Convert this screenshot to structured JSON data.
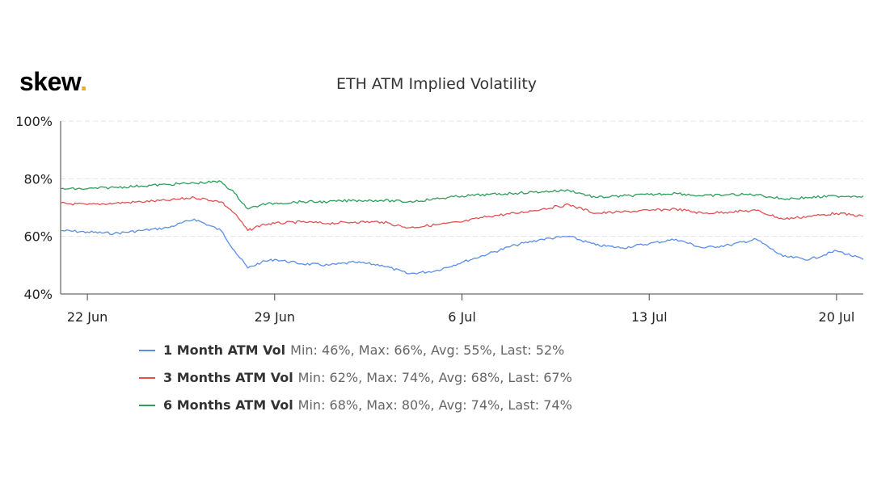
{
  "logo": {
    "text": "skew",
    "dot": "."
  },
  "chart_data": {
    "type": "line",
    "title": "ETH ATM Implied Volatility",
    "ylim": [
      40,
      100
    ],
    "yticks": [
      "40%",
      "60%",
      "80%",
      "100%"
    ],
    "ytick_values": [
      40,
      60,
      80,
      100
    ],
    "xticks": [
      "22 Jun",
      "29 Jun",
      "6 Jul",
      "13 Jul",
      "20 Jul"
    ],
    "xtick_values": [
      "2020-06-22",
      "2020-06-29",
      "2020-07-06",
      "2020-07-13",
      "2020-07-20"
    ],
    "xlim": [
      "2020-06-21",
      "2020-07-21"
    ],
    "grid": true,
    "legend_position": "bottom",
    "series": [
      {
        "name": "1 Month ATM Vol",
        "stats": "Min: 46%, Max: 66%, Avg: 55%, Last: 52%",
        "color": "#5b8ee6",
        "x": [
          "2020-06-21",
          "2020-06-22",
          "2020-06-23",
          "2020-06-24",
          "2020-06-25",
          "2020-06-26",
          "2020-06-27",
          "2020-06-27T12:00",
          "2020-06-28",
          "2020-06-28T12:00",
          "2020-06-29",
          "2020-06-30",
          "2020-07-01",
          "2020-07-02",
          "2020-07-03",
          "2020-07-04",
          "2020-07-05",
          "2020-07-06",
          "2020-07-07",
          "2020-07-08",
          "2020-07-09",
          "2020-07-10",
          "2020-07-11",
          "2020-07-12",
          "2020-07-13",
          "2020-07-14",
          "2020-07-15",
          "2020-07-16",
          "2020-07-17",
          "2020-07-18",
          "2020-07-19",
          "2020-07-20",
          "2020-07-21"
        ],
        "values": [
          62,
          61.5,
          61,
          62,
          63,
          66,
          62,
          55,
          49,
          51,
          52,
          50.5,
          50,
          51,
          50,
          47,
          48,
          51,
          54,
          57,
          59,
          60,
          57,
          56,
          57.5,
          59,
          56,
          57,
          59,
          53,
          52,
          55,
          52
        ]
      },
      {
        "name": "3 Months ATM Vol",
        "stats": "Min: 62%, Max: 74%, Avg: 68%, Last: 67%",
        "color": "#e05252",
        "x": [
          "2020-06-21",
          "2020-06-22",
          "2020-06-23",
          "2020-06-24",
          "2020-06-25",
          "2020-06-26",
          "2020-06-27",
          "2020-06-27T12:00",
          "2020-06-28",
          "2020-06-28T12:00",
          "2020-06-29",
          "2020-06-30",
          "2020-07-01",
          "2020-07-02",
          "2020-07-03",
          "2020-07-04",
          "2020-07-05",
          "2020-07-06",
          "2020-07-07",
          "2020-07-08",
          "2020-07-09",
          "2020-07-10",
          "2020-07-11",
          "2020-07-12",
          "2020-07-13",
          "2020-07-14",
          "2020-07-15",
          "2020-07-16",
          "2020-07-17",
          "2020-07-18",
          "2020-07-19",
          "2020-07-20",
          "2020-07-21"
        ],
        "values": [
          71.5,
          71,
          71.5,
          72,
          72.5,
          73.5,
          72,
          68,
          62,
          64,
          64.5,
          65,
          64.5,
          65,
          65,
          63,
          64,
          65,
          67,
          68,
          69.5,
          71,
          68,
          68.5,
          69,
          69.5,
          68,
          68.5,
          69,
          66,
          67,
          68,
          67
        ]
      },
      {
        "name": "6 Months ATM Vol",
        "stats": "Min: 68%, Max: 80%, Avg: 74%, Last: 74%",
        "color": "#2e9e5b",
        "x": [
          "2020-06-21",
          "2020-06-22",
          "2020-06-23",
          "2020-06-24",
          "2020-06-25",
          "2020-06-26",
          "2020-06-27",
          "2020-06-27T12:00",
          "2020-06-28",
          "2020-06-28T12:00",
          "2020-06-29",
          "2020-06-30",
          "2020-07-01",
          "2020-07-02",
          "2020-07-03",
          "2020-07-04",
          "2020-07-05",
          "2020-07-06",
          "2020-07-07",
          "2020-07-08",
          "2020-07-09",
          "2020-07-10",
          "2020-07-11",
          "2020-07-12",
          "2020-07-13",
          "2020-07-14",
          "2020-07-15",
          "2020-07-16",
          "2020-07-17",
          "2020-07-18",
          "2020-07-19",
          "2020-07-20",
          "2020-07-21"
        ],
        "values": [
          76.5,
          76.5,
          77,
          77.5,
          78,
          78.5,
          79,
          75,
          69.5,
          71,
          71.5,
          72,
          72,
          72.5,
          72.5,
          72,
          73,
          74,
          74.5,
          75,
          75.5,
          76,
          73.5,
          74,
          74.5,
          75,
          74,
          74.5,
          74.5,
          73,
          73.5,
          74,
          74
        ]
      }
    ]
  }
}
